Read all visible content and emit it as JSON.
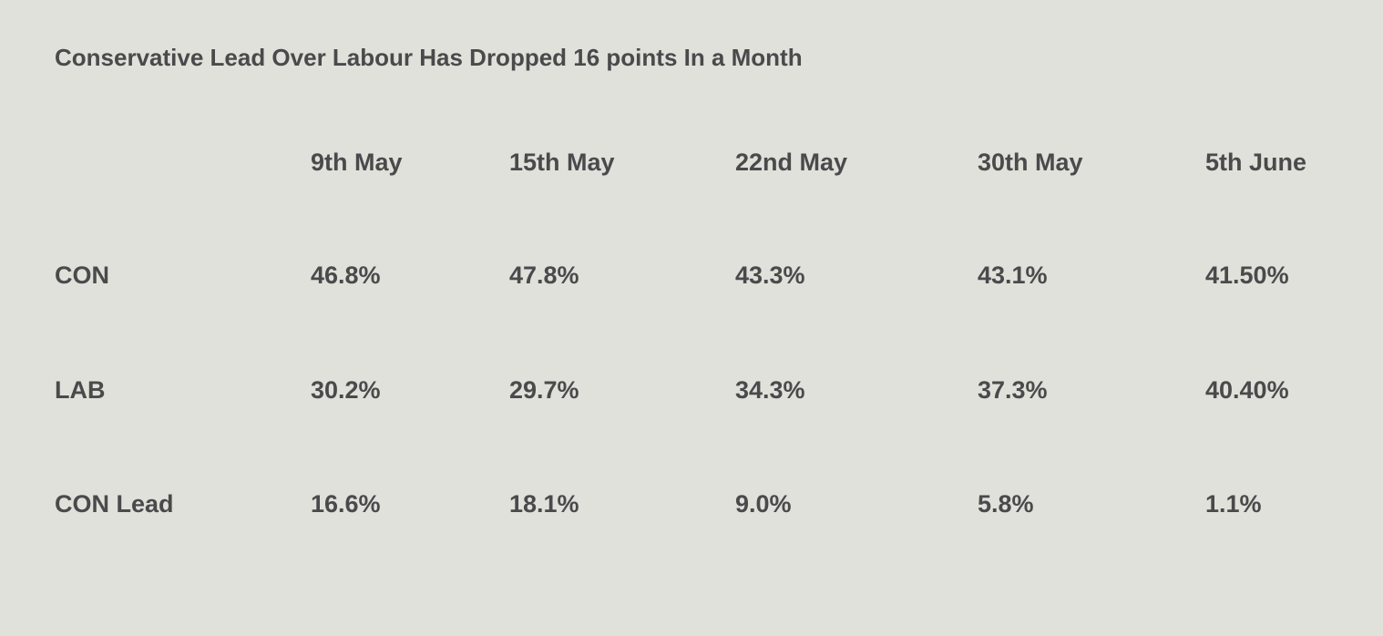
{
  "chart_data": {
    "type": "table",
    "title": "Conservative Lead Over Labour Has Dropped 16 points In a Month",
    "columns": [
      "9th May",
      "15th May",
      "22nd May",
      "30th May",
      "5th June"
    ],
    "rows": [
      {
        "label": "CON",
        "values": [
          "46.8%",
          "47.8%",
          "43.3%",
          "43.1%",
          "41.50%"
        ]
      },
      {
        "label": "LAB",
        "values": [
          "30.2%",
          "29.7%",
          "34.3%",
          "37.3%",
          "40.40%"
        ]
      },
      {
        "label": "CON Lead",
        "values": [
          "16.6%",
          "18.1%",
          "9.0%",
          "5.8%",
          "1.1%"
        ]
      }
    ]
  },
  "colors": {
    "background": "#e0e1da",
    "text": "#4a4a4c"
  }
}
